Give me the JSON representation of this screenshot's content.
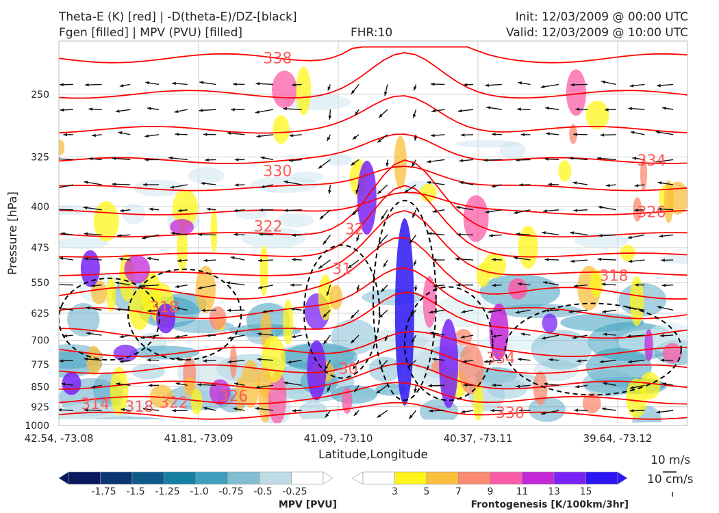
{
  "header": {
    "title_line1": "Theta-E (K) [red] | -D(theta-E)/DZ-[black]",
    "title_line2": "Fgen [filled] | MPV (PVU) [filled]",
    "fhr": "FHR:10",
    "init": "Init: 12/03/2009 @ 00:00 UTC",
    "valid": "Valid: 12/03/2009 @ 10:00 UTC"
  },
  "colors": {
    "theta_e": "#ff0000",
    "ddz": "#000000",
    "mpv_scale": [
      "#08195e",
      "#0c3574",
      "#0f5a8a",
      "#1580a3",
      "#3e9fc0",
      "#82bed3",
      "#bfdce6",
      "#ffffff"
    ],
    "fgen_scale": [
      "#ffffff",
      "#fff51a",
      "#fbbf3d",
      "#fa8a70",
      "#fb5ca8",
      "#c427d8",
      "#7a22f5",
      "#2c16f4"
    ]
  },
  "chart_data": {
    "type": "cross-section",
    "xlabel": "Latitude,Longitude",
    "ylabel": "Pressure [hPa]",
    "x_ticks": [
      "42.54, -73.08",
      "41.81, -73.09",
      "41.09, -73.10",
      "40.37, -73.11",
      "39.64, -73.12"
    ],
    "y_ticks": [
      250,
      325,
      400,
      475,
      550,
      625,
      700,
      775,
      850,
      925,
      1000
    ],
    "ylim": [
      1000,
      200
    ],
    "y_scale": "log",
    "grid": true,
    "theta_e_labels": [
      {
        "text": "338",
        "x": 0.325,
        "p": 215
      },
      {
        "text": "334",
        "x": 0.92,
        "p": 330
      },
      {
        "text": "330",
        "x": 0.325,
        "p": 345
      },
      {
        "text": "326",
        "x": 0.92,
        "p": 410
      },
      {
        "text": "322",
        "x": 0.31,
        "p": 435
      },
      {
        "text": "318",
        "x": 0.86,
        "p": 535
      },
      {
        "text": "318",
        "x": 0.145,
        "p": 610
      },
      {
        "text": "32",
        "x": 0.455,
        "p": 440
      },
      {
        "text": "31",
        "x": 0.435,
        "p": 520
      },
      {
        "text": "30",
        "x": 0.445,
        "p": 790
      },
      {
        "text": "334",
        "x": 0.68,
        "p": 755
      },
      {
        "text": "326",
        "x": 0.255,
        "p": 885
      },
      {
        "text": "322",
        "x": 0.16,
        "p": 910
      },
      {
        "text": "318",
        "x": 0.105,
        "p": 925
      },
      {
        "text": "314",
        "x": 0.035,
        "p": 915
      },
      {
        "text": "330",
        "x": 0.695,
        "p": 950
      }
    ],
    "mpv_colorbar": {
      "label": "MPV [PVU]",
      "ticks": [
        "-1.75",
        "-1.5",
        "-1.25",
        "-1.0",
        "-0.75",
        "-0.5",
        "-0.25"
      ]
    },
    "fgen_colorbar": {
      "label": "Frontogenesis [K/100km/3hr]",
      "ticks": [
        "3",
        "5",
        "7",
        "9",
        "11",
        "13",
        "15"
      ]
    },
    "vector_keys": [
      "10 m/s",
      "10 cm/s"
    ]
  }
}
